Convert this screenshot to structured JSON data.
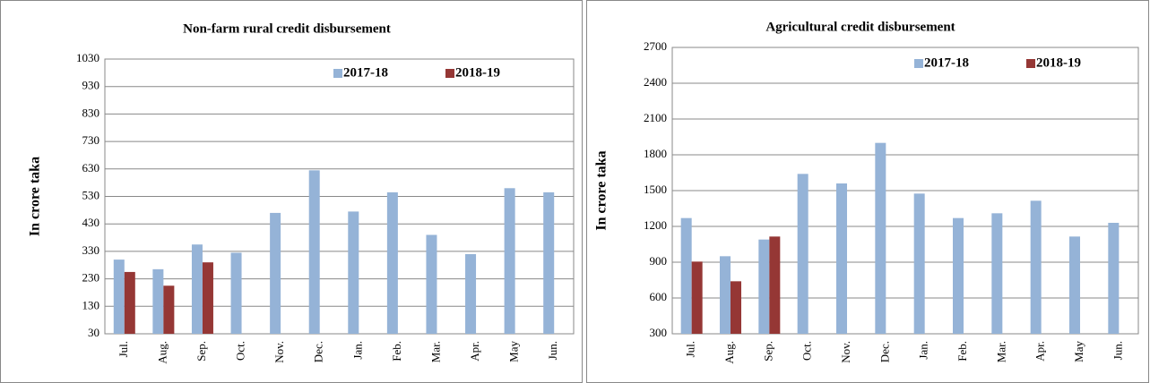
{
  "chart_data": [
    {
      "type": "bar",
      "title": "Non-farm rural credit disbursement",
      "y_label": "In crore taka",
      "categories": [
        "Jul.",
        "Aug.",
        "Sep.",
        "Oct.",
        "Nov.",
        "Dec.",
        "Jan.",
        "Feb.",
        "Mar.",
        "Apr.",
        "May",
        "Jun."
      ],
      "series": [
        {
          "name": "2017-18",
          "color": "#95b3d7",
          "values": [
            300,
            265,
            355,
            325,
            470,
            625,
            475,
            545,
            390,
            320,
            560,
            545
          ]
        },
        {
          "name": "2018-19",
          "color": "#953735",
          "values": [
            255,
            205,
            290,
            null,
            null,
            null,
            null,
            null,
            null,
            null,
            null,
            null
          ]
        }
      ],
      "ylim": [
        30,
        1030
      ],
      "yticks": [
        30,
        130,
        230,
        330,
        430,
        530,
        630,
        730,
        830,
        930,
        1030
      ],
      "grid": true
    },
    {
      "type": "bar",
      "title": "Agricultural credit disbursement",
      "y_label": "In crore taka",
      "categories": [
        "Jul.",
        "Aug.",
        "Sep.",
        "Oct.",
        "Nov.",
        "Dec.",
        "Jan.",
        "Feb.",
        "Mar.",
        "Apr.",
        "May",
        "Jun."
      ],
      "series": [
        {
          "name": "2017-18",
          "color": "#95b3d7",
          "values": [
            1270,
            950,
            1090,
            1640,
            1560,
            1900,
            1475,
            1270,
            1310,
            1415,
            1115,
            1230
          ]
        },
        {
          "name": "2018-19",
          "color": "#953735",
          "values": [
            905,
            740,
            1115,
            null,
            null,
            null,
            null,
            null,
            null,
            null,
            null,
            null
          ]
        }
      ],
      "ylim": [
        300,
        2700
      ],
      "yticks": [
        300,
        600,
        900,
        1200,
        1500,
        1800,
        2100,
        2400,
        2700
      ],
      "grid": true
    }
  ]
}
